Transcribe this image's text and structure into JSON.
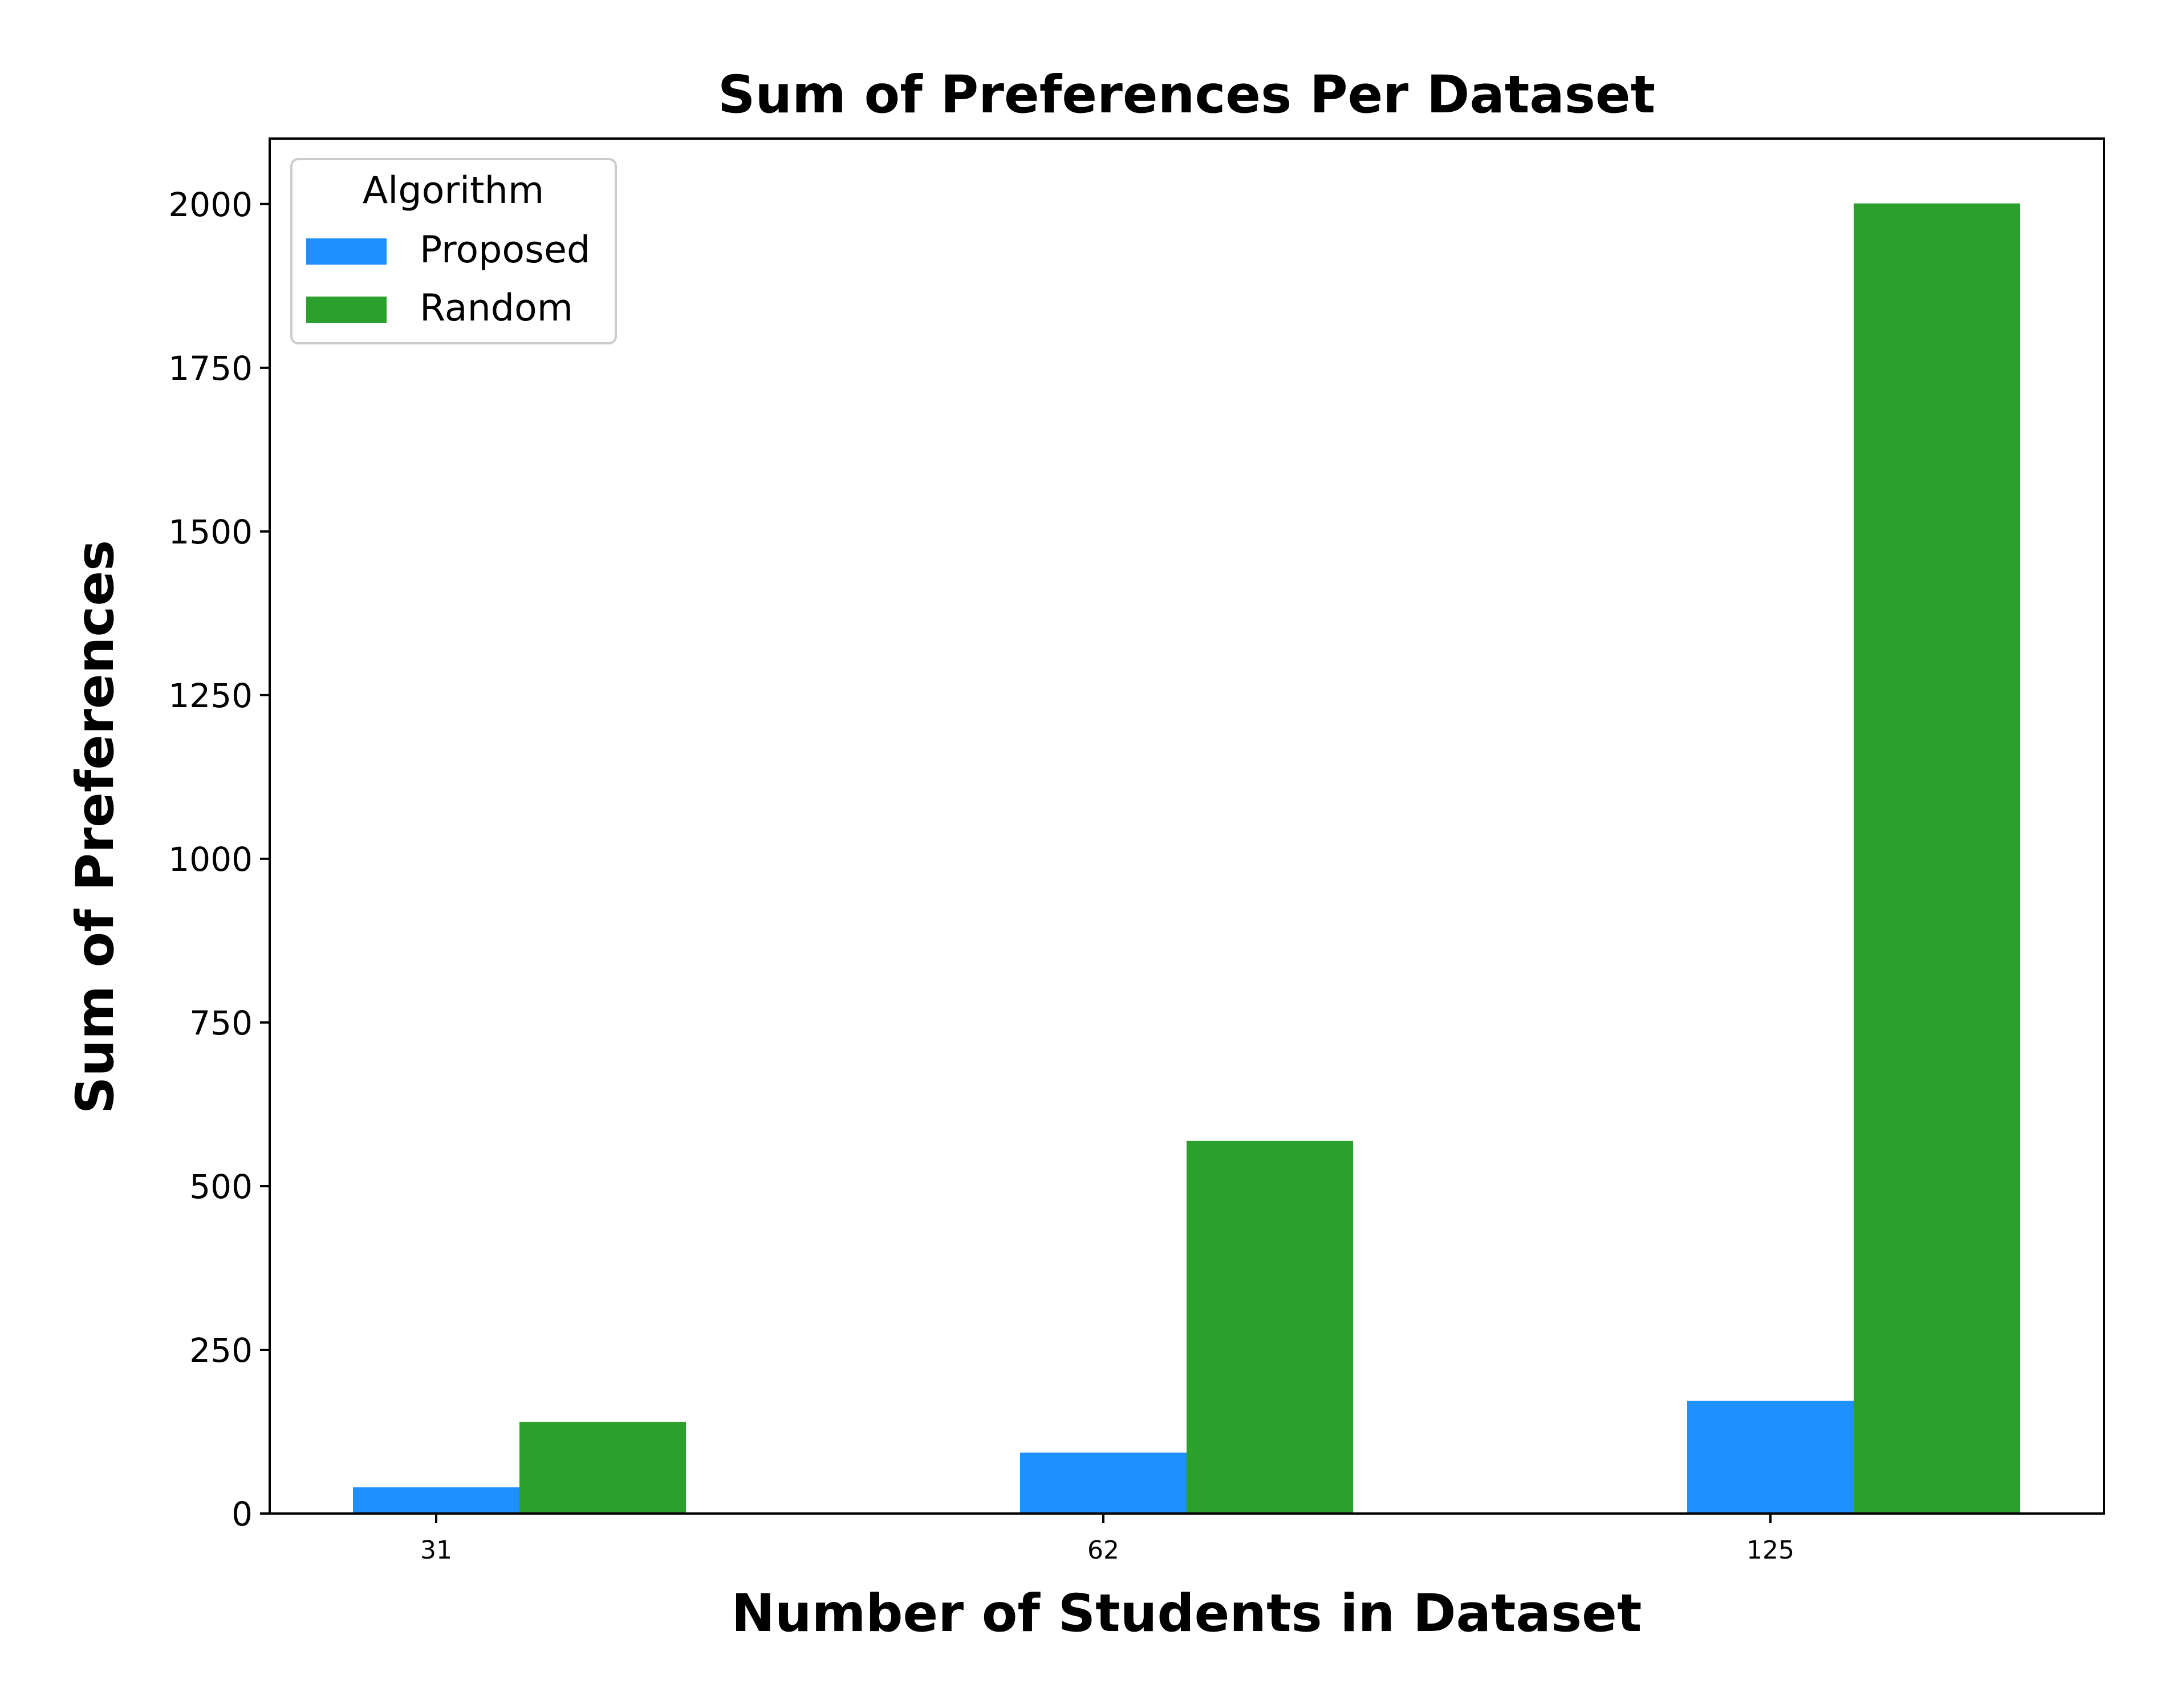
{
  "chart_data": {
    "type": "bar",
    "title": "Sum of Preferences Per Dataset",
    "xlabel": "Number of Students in Dataset",
    "ylabel": "Sum of Preferences",
    "categories": [
      "31",
      "62",
      "125"
    ],
    "series": [
      {
        "name": "Proposed",
        "values": [
          40,
          93,
          172
        ],
        "color": "#1e90ff"
      },
      {
        "name": "Random",
        "values": [
          140,
          569,
          2001
        ],
        "color": "#2ca02c"
      }
    ],
    "ylim": [
      0,
      2100
    ],
    "yticks": [
      0,
      250,
      500,
      750,
      1000,
      1250,
      1500,
      1750,
      2000
    ],
    "legend": {
      "title": "Algorithm",
      "placement": "top-left"
    },
    "grid": false
  }
}
